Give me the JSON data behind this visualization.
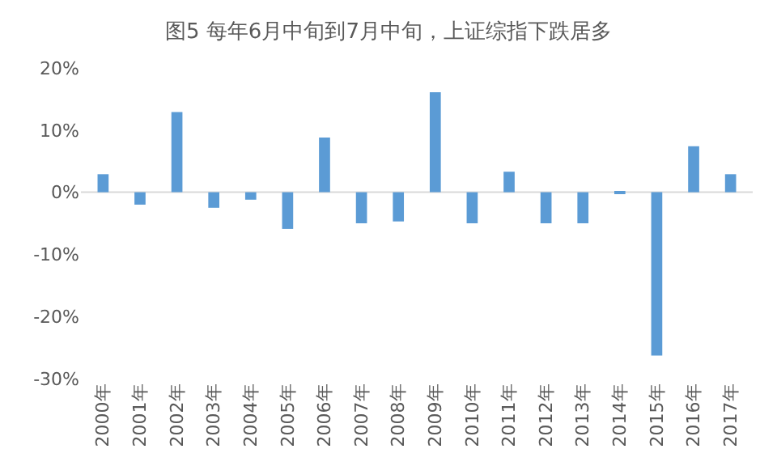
{
  "chart_data": {
    "type": "bar",
    "title": "图5 每年6月中旬到7月中旬，上证综指下跌居多",
    "categories": [
      "2000年",
      "2001年",
      "2002年",
      "2003年",
      "2004年",
      "2005年",
      "2006年",
      "2007年",
      "2008年",
      "2009年",
      "2010年",
      "2011年",
      "2012年",
      "2013年",
      "2014年",
      "2015年",
      "2016年",
      "2017年"
    ],
    "values": [
      2.9,
      -2.0,
      12.9,
      -2.5,
      -1.2,
      -5.9,
      8.8,
      -5.0,
      -4.7,
      16.1,
      -5.0,
      3.3,
      -5.0,
      -5.0,
      -0.3,
      -26.3,
      7.4,
      2.9
    ],
    "color": "#5b9bd5",
    "ylim": [
      -30,
      20
    ],
    "yticks": [
      {
        "value": -30,
        "label": "-30%"
      },
      {
        "value": -20,
        "label": "-20%"
      },
      {
        "value": -10,
        "label": "-10%"
      },
      {
        "value": 0,
        "label": "0%"
      },
      {
        "value": 10,
        "label": "10%"
      },
      {
        "value": 20,
        "label": "20%"
      }
    ],
    "grid": false,
    "ref_lines": [
      {
        "axis": "y",
        "value": 0,
        "color": "#d9d9d9"
      }
    ]
  }
}
